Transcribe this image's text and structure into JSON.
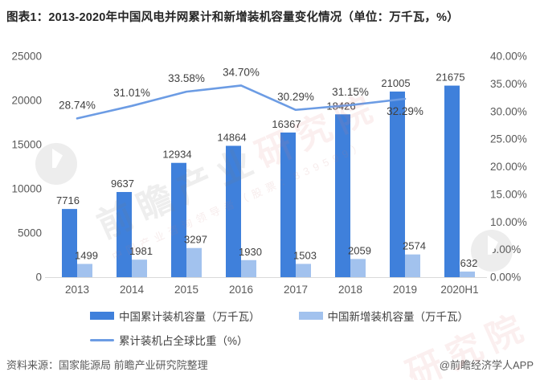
{
  "header": {
    "title": "图表1：2013-2020年中国风电并网累计和新增装机容量变化情况（单位：万千瓦，%）"
  },
  "chart_data": {
    "type": "combo-bar-line",
    "categories": [
      "2013",
      "2014",
      "2015",
      "2016",
      "2017",
      "2018",
      "2019",
      "2020H1"
    ],
    "series": [
      {
        "name": "中国累计装机容量（万千瓦）",
        "type": "bar",
        "color": "#3F80DB",
        "axis": "left",
        "values": [
          7716,
          9637,
          12934,
          14864,
          16367,
          18426,
          21005,
          21675
        ]
      },
      {
        "name": "中国新增装机容量（万千瓦）",
        "type": "bar",
        "color": "#A2C2EE",
        "axis": "left",
        "values": [
          1499,
          1981,
          3297,
          1930,
          1503,
          2059,
          2574,
          632
        ]
      },
      {
        "name": "累计装机占全球比重（%）",
        "type": "line",
        "color": "#6C9CE4",
        "axis": "right",
        "values": [
          28.74,
          31.01,
          33.58,
          34.7,
          30.29,
          31.15,
          32.29,
          null
        ],
        "labels": [
          "28.74%",
          "31.01%",
          "33.58%",
          "34.70%",
          "30.29%",
          "31.15%",
          "32.29%",
          null
        ],
        "label_positions": [
          "above",
          "above",
          "above",
          "above",
          "above",
          "above",
          "below",
          null
        ]
      }
    ],
    "left_axis": {
      "min": 0,
      "max": 25000,
      "tick_labels": [
        "25000",
        "20000",
        "15000",
        "10000",
        "5000",
        "0"
      ]
    },
    "right_axis": {
      "min": 0,
      "max": 40,
      "tick_labels": [
        "40.00%",
        "35.00%",
        "30.00%",
        "25.00%",
        "20.00%",
        "15.00%",
        "10.00%",
        "5.00%",
        "0.00%"
      ]
    },
    "grid": "off",
    "legend_position": "bottom"
  },
  "watermark": {
    "brand_gray": "前瞻产业",
    "brand_pink": "研究院",
    "sub_text": "中国产业咨询领导者（股票：839599）"
  },
  "footer": {
    "source": "资料来源：国家能源局  前瞻产业研究院整理",
    "credit": "@前瞻经济学人APP"
  }
}
